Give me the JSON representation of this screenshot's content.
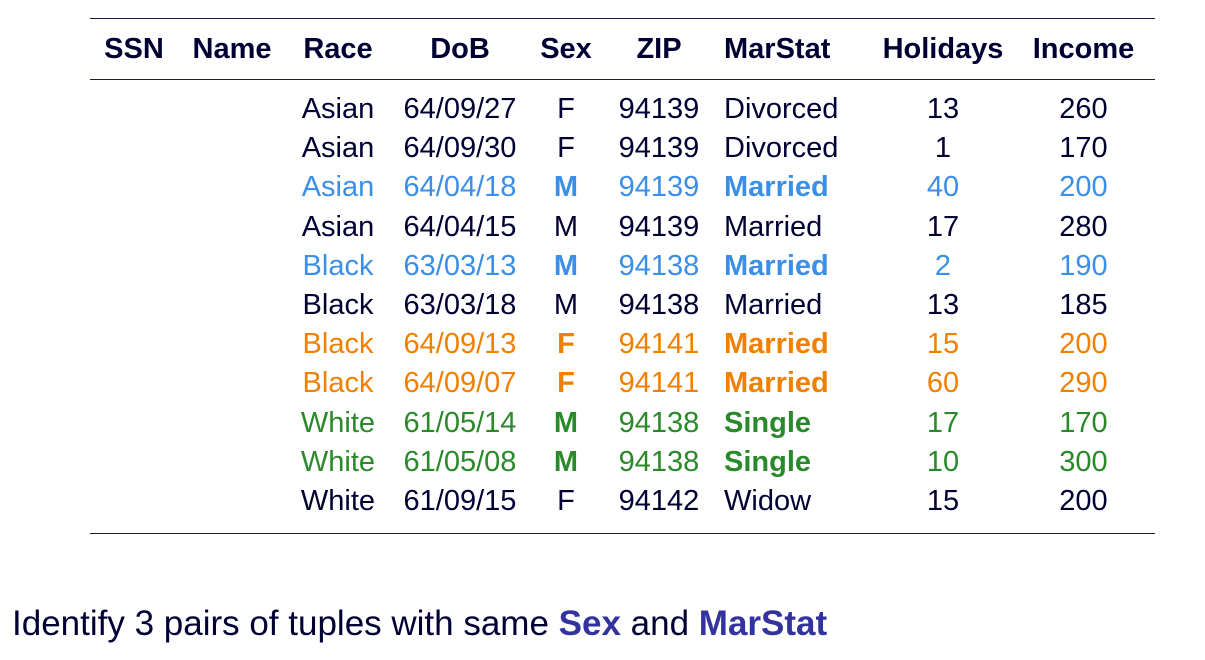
{
  "colors": {
    "text": "#000033",
    "blue": "#3b8fe6",
    "orange": "#f08000",
    "green": "#2a8a2a",
    "highlight": "#3333a0"
  },
  "table": {
    "headers": [
      "SSN",
      "Name",
      "Race",
      "DoB",
      "Sex",
      "ZIP",
      "MarStat",
      "Holidays",
      "Income"
    ],
    "rows": [
      {
        "race": "Asian",
        "dob": "64/09/27",
        "sex": "F",
        "zip": "94139",
        "marstat": "Divorced",
        "holidays": "13",
        "income": "260",
        "group": "none"
      },
      {
        "race": "Asian",
        "dob": "64/09/30",
        "sex": "F",
        "zip": "94139",
        "marstat": "Divorced",
        "holidays": "1",
        "income": "170",
        "group": "none"
      },
      {
        "race": "Asian",
        "dob": "64/04/18",
        "sex": "M",
        "zip": "94139",
        "marstat": "Married",
        "holidays": "40",
        "income": "200",
        "group": "blue"
      },
      {
        "race": "Asian",
        "dob": "64/04/15",
        "sex": "M",
        "zip": "94139",
        "marstat": "Married",
        "holidays": "17",
        "income": "280",
        "group": "none"
      },
      {
        "race": "Black",
        "dob": "63/03/13",
        "sex": "M",
        "zip": "94138",
        "marstat": "Married",
        "holidays": "2",
        "income": "190",
        "group": "blue"
      },
      {
        "race": "Black",
        "dob": "63/03/18",
        "sex": "M",
        "zip": "94138",
        "marstat": "Married",
        "holidays": "13",
        "income": "185",
        "group": "none"
      },
      {
        "race": "Black",
        "dob": "64/09/13",
        "sex": "F",
        "zip": "94141",
        "marstat": "Married",
        "holidays": "15",
        "income": "200",
        "group": "orange"
      },
      {
        "race": "Black",
        "dob": "64/09/07",
        "sex": "F",
        "zip": "94141",
        "marstat": "Married",
        "holidays": "60",
        "income": "290",
        "group": "orange"
      },
      {
        "race": "White",
        "dob": "61/05/14",
        "sex": "M",
        "zip": "94138",
        "marstat": "Single",
        "holidays": "17",
        "income": "170",
        "group": "green"
      },
      {
        "race": "White",
        "dob": "61/05/08",
        "sex": "M",
        "zip": "94138",
        "marstat": "Single",
        "holidays": "10",
        "income": "300",
        "group": "green"
      },
      {
        "race": "White",
        "dob": "61/09/15",
        "sex": "F",
        "zip": "94142",
        "marstat": "Widow",
        "holidays": "15",
        "income": "200",
        "group": "none"
      }
    ]
  },
  "caption": {
    "prefix": "Identify 3 pairs of tuples with same ",
    "field1": "Sex",
    "middle": " and ",
    "field2": "MarStat"
  }
}
